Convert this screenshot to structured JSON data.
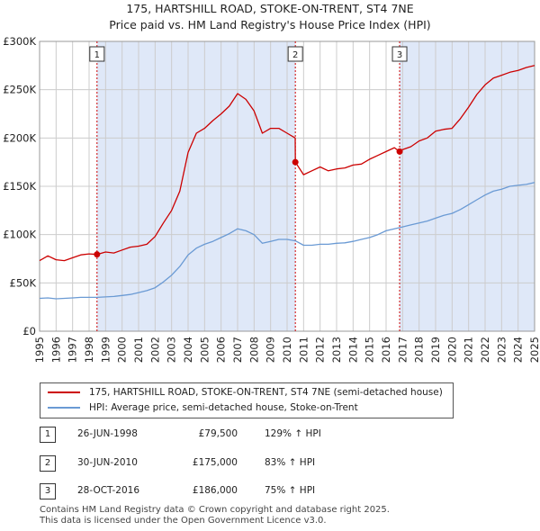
{
  "title": "175, HARTSHILL ROAD, STOKE-ON-TRENT, ST4 7NE",
  "subtitle": "Price paid vs. HM Land Registry's House Price Index (HPI)",
  "colors": {
    "property": "#cc0000",
    "hpi": "#6a9ad4",
    "shade": "#dfe8f8",
    "grid": "#cccccc",
    "vline": "#cc0000"
  },
  "legend": [
    {
      "label": "175, HARTSHILL ROAD, STOKE-ON-TRENT, ST4 7NE (semi-detached house)"
    },
    {
      "label": "HPI: Average price, semi-detached house, Stoke-on-Trent"
    }
  ],
  "sales": [
    {
      "num": "1",
      "date": "26-JUN-1998",
      "price": "£79,500",
      "hpi": "129% ↑ HPI"
    },
    {
      "num": "2",
      "date": "30-JUN-2010",
      "price": "£175,000",
      "hpi": "83% ↑ HPI"
    },
    {
      "num": "3",
      "date": "28-OCT-2016",
      "price": "£186,000",
      "hpi": "75% ↑ HPI"
    }
  ],
  "footer": [
    "Contains HM Land Registry data © Crown copyright and database right 2025.",
    "This data is licensed under the Open Government Licence v3.0."
  ],
  "chart_data": {
    "type": "line",
    "title": "175, HARTSHILL ROAD, STOKE-ON-TRENT, ST4 7NE",
    "subtitle": "Price paid vs. HM Land Registry's House Price Index (HPI)",
    "xlim": [
      1995,
      2025
    ],
    "ylim": [
      0,
      300000
    ],
    "x_ticks": [
      "1995",
      "1996",
      "1997",
      "1998",
      "1999",
      "2000",
      "2001",
      "2002",
      "2003",
      "2004",
      "2005",
      "2006",
      "2007",
      "2008",
      "2009",
      "2010",
      "2011",
      "2012",
      "2013",
      "2014",
      "2015",
      "2016",
      "2017",
      "2018",
      "2019",
      "2020",
      "2021",
      "2022",
      "2023",
      "2024",
      "2025"
    ],
    "y_ticks": [
      {
        "value": 0,
        "label": "£0"
      },
      {
        "value": 50000,
        "label": "£50K"
      },
      {
        "value": 100000,
        "label": "£100K"
      },
      {
        "value": 150000,
        "label": "£150K"
      },
      {
        "value": 200000,
        "label": "£200K"
      },
      {
        "value": 250000,
        "label": "£250K"
      },
      {
        "value": 300000,
        "label": "£300K"
      }
    ],
    "grid": true,
    "shaded_periods": [
      [
        1998.48,
        2010.5
      ],
      [
        2016.82,
        2025
      ]
    ],
    "sale_points": [
      {
        "label": "1",
        "x": 1998.48,
        "y": 79500
      },
      {
        "label": "2",
        "x": 2010.5,
        "y": 175000
      },
      {
        "label": "3",
        "x": 2016.82,
        "y": 186000
      }
    ],
    "series": [
      {
        "name": "175, HARTSHILL ROAD, STOKE-ON-TRENT, ST4 7NE (semi-detached house)",
        "x": [
          1995,
          1995.5,
          1996,
          1996.5,
          1997,
          1997.5,
          1998,
          1998.48,
          1999,
          1999.5,
          2000,
          2000.5,
          2001,
          2001.5,
          2002,
          2002.5,
          2003,
          2003.5,
          2004,
          2004.5,
          2005,
          2005.5,
          2006,
          2006.5,
          2007,
          2007.5,
          2008,
          2008.5,
          2009,
          2009.5,
          2010,
          2010.49,
          2010.5,
          2011,
          2011.5,
          2012,
          2012.5,
          2013,
          2013.5,
          2014,
          2014.5,
          2015,
          2015.5,
          2016,
          2016.5,
          2016.82,
          2017,
          2017.5,
          2018,
          2018.5,
          2019,
          2019.5,
          2020,
          2020.5,
          2021,
          2021.5,
          2022,
          2022.5,
          2023,
          2023.5,
          2024,
          2024.5,
          2025
        ],
        "values": [
          73000,
          78000,
          74000,
          73000,
          76000,
          79000,
          80000,
          79500,
          82000,
          81000,
          84000,
          87000,
          88000,
          90000,
          98000,
          112000,
          125000,
          145000,
          185000,
          205000,
          210000,
          218000,
          225000,
          233000,
          246000,
          240000,
          228000,
          205000,
          210000,
          210000,
          205000,
          200000,
          175000,
          162000,
          166000,
          170000,
          166000,
          168000,
          169000,
          172000,
          173000,
          178000,
          182000,
          186000,
          190000,
          186000,
          188000,
          191000,
          197000,
          200000,
          207000,
          209000,
          210000,
          220000,
          232000,
          245000,
          255000,
          262000,
          265000,
          268000,
          270000,
          273000,
          275000
        ]
      },
      {
        "name": "HPI: Average price, semi-detached house, Stoke-on-Trent",
        "x": [
          1995,
          1995.5,
          1996,
          1996.5,
          1997,
          1997.5,
          1998,
          1998.5,
          1999,
          1999.5,
          2000,
          2000.5,
          2001,
          2001.5,
          2002,
          2002.5,
          2003,
          2003.5,
          2004,
          2004.5,
          2005,
          2005.5,
          2006,
          2006.5,
          2007,
          2007.5,
          2008,
          2008.5,
          2009,
          2009.5,
          2010,
          2010.5,
          2011,
          2011.5,
          2012,
          2012.5,
          2013,
          2013.5,
          2014,
          2014.5,
          2015,
          2015.5,
          2016,
          2016.5,
          2017,
          2017.5,
          2018,
          2018.5,
          2019,
          2019.5,
          2020,
          2020.5,
          2021,
          2021.5,
          2022,
          2022.5,
          2023,
          2023.5,
          2024,
          2024.5,
          2025
        ],
        "values": [
          34000,
          34500,
          33500,
          34000,
          34500,
          35000,
          35000,
          35000,
          35500,
          36000,
          37000,
          38000,
          40000,
          42000,
          45000,
          51000,
          58000,
          67000,
          79000,
          86000,
          90000,
          93000,
          97000,
          101000,
          106000,
          104000,
          100000,
          91000,
          93000,
          95000,
          95000,
          93500,
          89000,
          89000,
          90000,
          90000,
          91000,
          91500,
          93000,
          95000,
          97000,
          100000,
          104000,
          106000,
          108000,
          110000,
          112000,
          114000,
          117000,
          120000,
          122000,
          126000,
          131000,
          136000,
          141000,
          145000,
          147000,
          150000,
          151000,
          152000,
          154000
        ]
      }
    ]
  }
}
